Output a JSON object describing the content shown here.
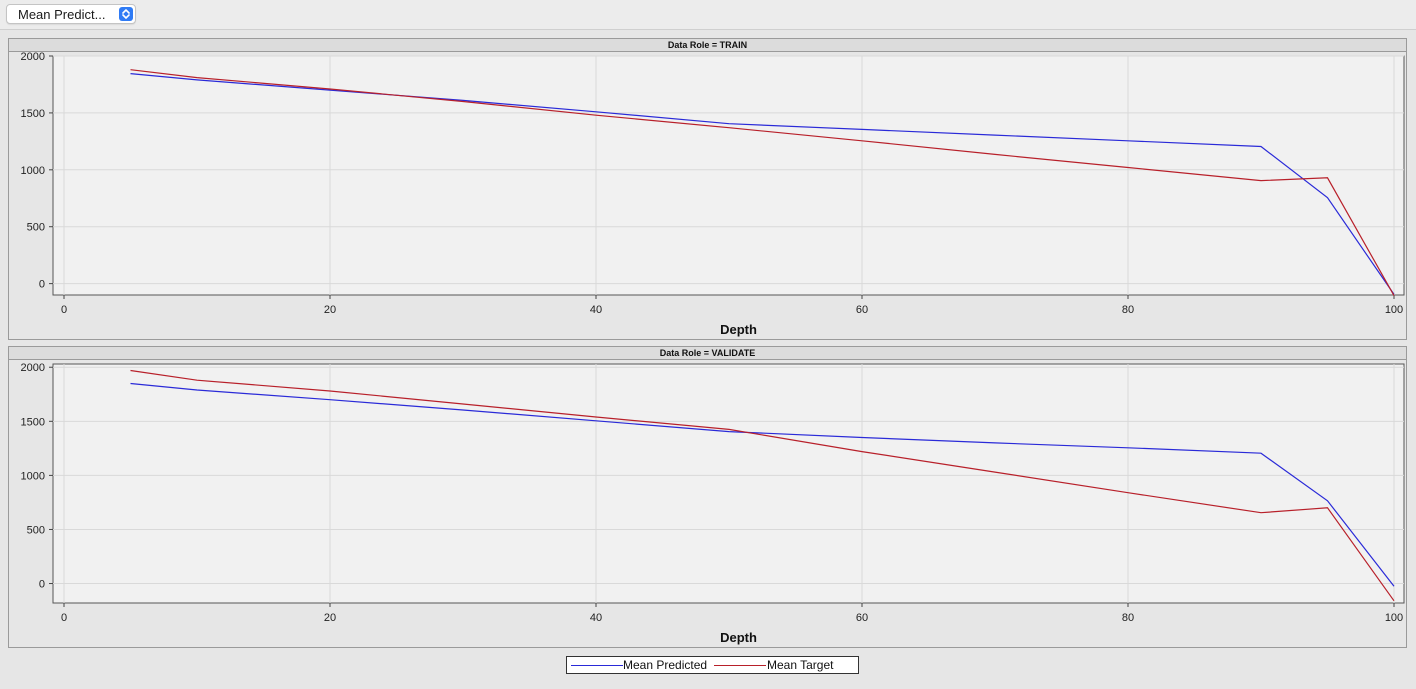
{
  "toolbar": {
    "dropdown_value": "Mean Predict..."
  },
  "colors": {
    "predicted": "#2a2ad8",
    "target": "#b8202a"
  },
  "legend": {
    "items": [
      "Mean Predicted",
      "Mean Target"
    ]
  },
  "chart_data": [
    {
      "type": "line",
      "title": "Data Role = TRAIN",
      "xlabel": "Depth",
      "ylabel": "",
      "xlim": [
        0,
        100
      ],
      "ylim": [
        -100,
        2000
      ],
      "xticks": [
        0,
        20,
        40,
        60,
        80,
        100
      ],
      "yticks": [
        0,
        500,
        1000,
        1500,
        2000
      ],
      "grid": true,
      "series": [
        {
          "name": "Mean Predicted",
          "x": [
            5,
            10,
            20,
            30,
            40,
            50,
            60,
            70,
            80,
            90,
            95,
            100
          ],
          "y": [
            1845,
            1790,
            1700,
            1610,
            1510,
            1405,
            1355,
            1305,
            1255,
            1205,
            755,
            -95
          ]
        },
        {
          "name": "Mean Target",
          "x": [
            5,
            10,
            20,
            30,
            40,
            50,
            60,
            70,
            80,
            90,
            95,
            100
          ],
          "y": [
            1880,
            1810,
            1710,
            1600,
            1480,
            1370,
            1255,
            1135,
            1020,
            905,
            930,
            -105
          ]
        }
      ]
    },
    {
      "type": "line",
      "title": "Data Role = VALIDATE",
      "xlabel": "Depth",
      "ylabel": "",
      "xlim": [
        0,
        100
      ],
      "ylim": [
        -180,
        2030
      ],
      "xticks": [
        0,
        20,
        40,
        60,
        80,
        100
      ],
      "yticks": [
        0,
        500,
        1000,
        1500,
        2000
      ],
      "grid": true,
      "series": [
        {
          "name": "Mean Predicted",
          "x": [
            5,
            10,
            20,
            30,
            40,
            50,
            60,
            70,
            80,
            90,
            95,
            100
          ],
          "y": [
            1850,
            1790,
            1700,
            1605,
            1505,
            1405,
            1350,
            1300,
            1255,
            1205,
            765,
            -25
          ]
        },
        {
          "name": "Mean Target",
          "x": [
            5,
            10,
            20,
            30,
            40,
            50,
            60,
            70,
            80,
            90,
            95,
            100
          ],
          "y": [
            1970,
            1880,
            1780,
            1660,
            1540,
            1425,
            1220,
            1030,
            840,
            655,
            700,
            -160
          ]
        }
      ]
    }
  ]
}
